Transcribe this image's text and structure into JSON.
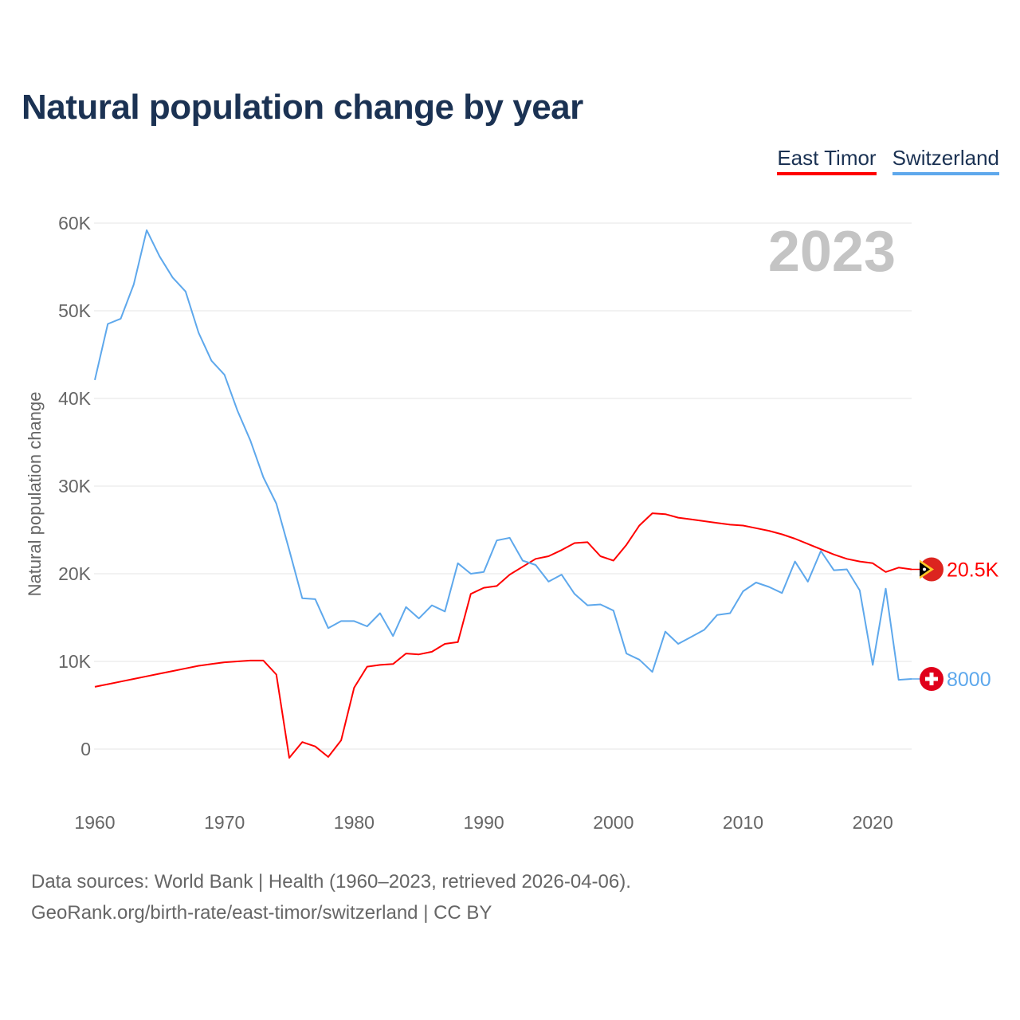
{
  "title": "Natural population change by year",
  "footer": {
    "line1": "Data sources: World Bank | Health (1960–2023, retrieved 2026-04-06).",
    "line2": "GeoRank.org/birth-rate/east-timor/switzerland | CC BY"
  },
  "chart_data": {
    "type": "line",
    "title": "Natural population change by year",
    "xlabel": "",
    "ylabel": "Natural population change",
    "year_label": "2023",
    "xlim": [
      1960,
      2023
    ],
    "ylim": [
      -6000,
      60000
    ],
    "x_ticks": [
      1960,
      1970,
      1980,
      1990,
      2000,
      2010,
      2020
    ],
    "y_ticks": [
      0,
      10000,
      20000,
      30000,
      40000,
      50000,
      60000
    ],
    "y_tick_labels": [
      "0",
      "10K",
      "20K",
      "30K",
      "40K",
      "50K",
      "60K"
    ],
    "grid": true,
    "legend_position": "top-right",
    "x": [
      1960,
      1961,
      1962,
      1963,
      1964,
      1965,
      1966,
      1967,
      1968,
      1969,
      1970,
      1971,
      1972,
      1973,
      1974,
      1975,
      1976,
      1977,
      1978,
      1979,
      1980,
      1981,
      1982,
      1983,
      1984,
      1985,
      1986,
      1987,
      1988,
      1989,
      1990,
      1991,
      1992,
      1993,
      1994,
      1995,
      1996,
      1997,
      1998,
      1999,
      2000,
      2001,
      2002,
      2003,
      2004,
      2005,
      2006,
      2007,
      2008,
      2009,
      2010,
      2011,
      2012,
      2013,
      2014,
      2015,
      2016,
      2017,
      2018,
      2019,
      2020,
      2021,
      2022,
      2023
    ],
    "series": [
      {
        "name": "East Timor",
        "color": "#ff0000",
        "end_label": "20.5K",
        "values": [
          7100,
          7400,
          7700,
          8000,
          8300,
          8600,
          8900,
          9200,
          9500,
          9700,
          9900,
          10000,
          10100,
          10100,
          8500,
          -1000,
          800,
          300,
          -900,
          1000,
          7000,
          9400,
          9600,
          9700,
          10900,
          10800,
          11100,
          12000,
          12200,
          17700,
          18400,
          18600,
          19900,
          20800,
          21700,
          22000,
          22700,
          23500,
          23600,
          22000,
          21500,
          23300,
          25500,
          26900,
          26800,
          26400,
          26200,
          26000,
          25800,
          25600,
          25500,
          25200,
          24900,
          24500,
          24000,
          23400,
          22800,
          22200,
          21700,
          21400,
          21200,
          20200,
          20700,
          20500
        ]
      },
      {
        "name": "Switzerland",
        "color": "#5ea8ec",
        "end_label": "8000",
        "values": [
          42100,
          48500,
          49100,
          53000,
          59200,
          56200,
          53800,
          52200,
          47500,
          44300,
          42700,
          38600,
          35200,
          31000,
          28000,
          22700,
          17200,
          17100,
          13800,
          14600,
          14600,
          14000,
          15500,
          12900,
          16200,
          14900,
          16400,
          15700,
          21200,
          20000,
          20200,
          23800,
          24100,
          21500,
          21000,
          19100,
          19900,
          17700,
          16400,
          16500,
          15800,
          10900,
          10200,
          8800,
          13400,
          12000,
          12800,
          13600,
          15300,
          15500,
          18000,
          19000,
          18500,
          17800,
          21400,
          19100,
          22600,
          20400,
          20500,
          18100,
          9600,
          18300,
          7900,
          8000
        ]
      }
    ]
  }
}
